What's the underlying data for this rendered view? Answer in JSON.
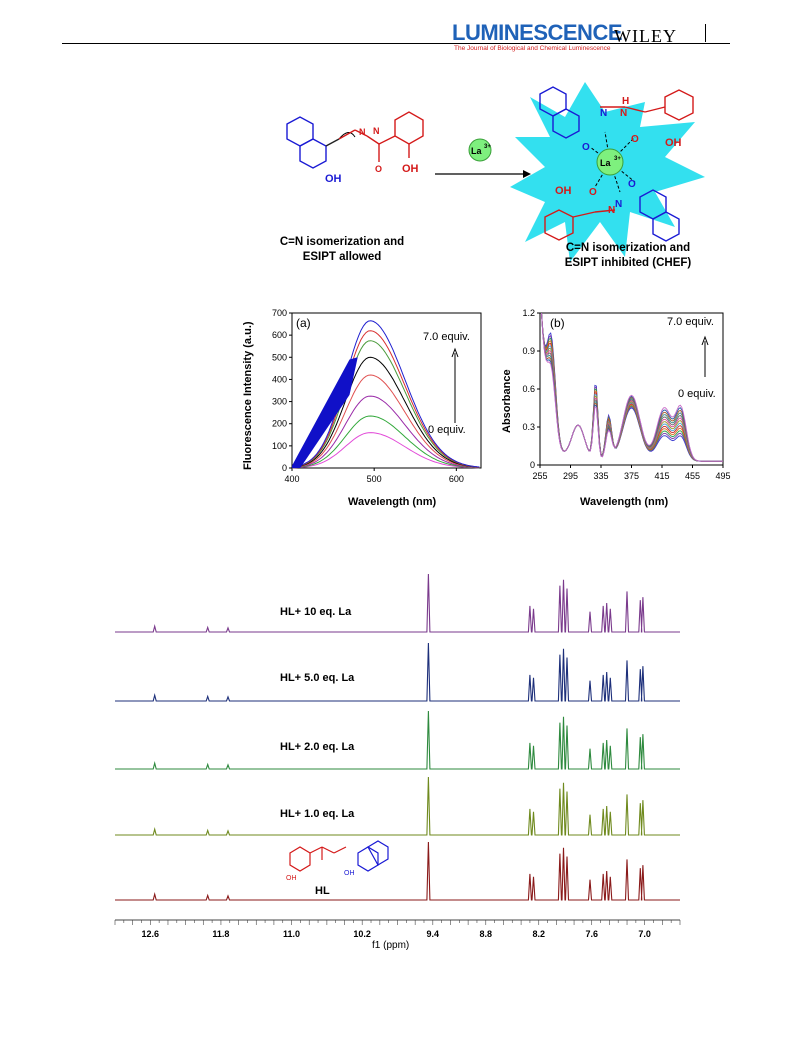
{
  "header": {
    "journal": "LUMINESCENCE",
    "subtitle": "The Journal of Biological and Chemical Luminescence",
    "publisher": "WILEY"
  },
  "scheme": {
    "metal_label": "La",
    "metal_charge": "3+",
    "left_caption": [
      "C=N isomerization and",
      "ESIPT allowed"
    ],
    "right_caption": [
      "C=N isomerization and",
      "ESIPT inhibited (CHEF)"
    ],
    "atoms": {
      "oh": "OH",
      "n": "N",
      "h": "H",
      "o": "O"
    },
    "colors": {
      "naphthol": "#1a1ad4",
      "salicyl": "#d41a1a",
      "star": "#33e0ef",
      "metal": "#7ef07e"
    }
  },
  "fluorescence": {
    "panel_label": "(a)",
    "ylabel": "Fluorescence Intensity (a.u.)",
    "xlabel": "Wavelength (nm)",
    "annotation_top": "7.0 equiv.",
    "annotation_bottom": "0 equiv.",
    "chart_data": {
      "type": "line",
      "xlim": [
        400,
        630
      ],
      "ylim": [
        0,
        700
      ],
      "xticks": [
        400,
        500,
        600
      ],
      "yticks": [
        0,
        100,
        200,
        300,
        400,
        500,
        600,
        700
      ],
      "peak_x": 495,
      "series": [
        {
          "peak": 160,
          "color": "#e24ad8"
        },
        {
          "peak": 235,
          "color": "#31a83a"
        },
        {
          "peak": 325,
          "color": "#9a2aa8"
        },
        {
          "peak": 420,
          "color": "#e05050"
        },
        {
          "peak": 500,
          "color": "#000000"
        },
        {
          "peak": 575,
          "color": "#4a9a3a"
        },
        {
          "peak": 620,
          "color": "#d83030"
        },
        {
          "peak": 665,
          "color": "#2020d0"
        }
      ]
    }
  },
  "absorbance": {
    "panel_label": "(b)",
    "ylabel": "Absorbance",
    "xlabel": "Wavelength (nm)",
    "annotation_top": "7.0 equiv.",
    "annotation_bottom": "0 equiv.",
    "chart_data": {
      "type": "line",
      "xlim": [
        255,
        495
      ],
      "ylim": [
        0,
        1.2
      ],
      "xticks": [
        255,
        295,
        335,
        375,
        415,
        455,
        495
      ],
      "yticks": [
        0,
        0.3,
        0.6,
        0.9,
        1.2
      ],
      "ytick_labels": [
        "0",
        "0.3",
        "0.6",
        "0.9",
        "1.2"
      ],
      "series_colors": [
        "#3b3bd0",
        "#7a3aa8",
        "#2aa04a",
        "#e06a20",
        "#c82a2a",
        "#4aa0d0",
        "#9a9a2a",
        "#d84a9a",
        "#6a6a6a",
        "#3a8a8a",
        "#a85a2a",
        "#2a5aa8",
        "#c86ac8"
      ]
    }
  },
  "nmr": {
    "xlabel": "f1 (ppm)",
    "xticks": [
      "12.6",
      "11.8",
      "11.0",
      "10.2",
      "9.4",
      "8.8",
      "8.2",
      "7.6",
      "7.0"
    ],
    "ligand_label": "HL",
    "spectra": [
      {
        "label": "HL+ 10 eq. La",
        "color": "#7a3a8c"
      },
      {
        "label": "HL+ 5.0 eq. La",
        "color": "#1d2f7a"
      },
      {
        "label": "HL+ 2.0 eq. La",
        "color": "#2e8a3e"
      },
      {
        "label": "HL+ 1.0 eq. La",
        "color": "#6f8a1e"
      },
      {
        "label": "",
        "color": "#8a1a1a"
      }
    ]
  }
}
